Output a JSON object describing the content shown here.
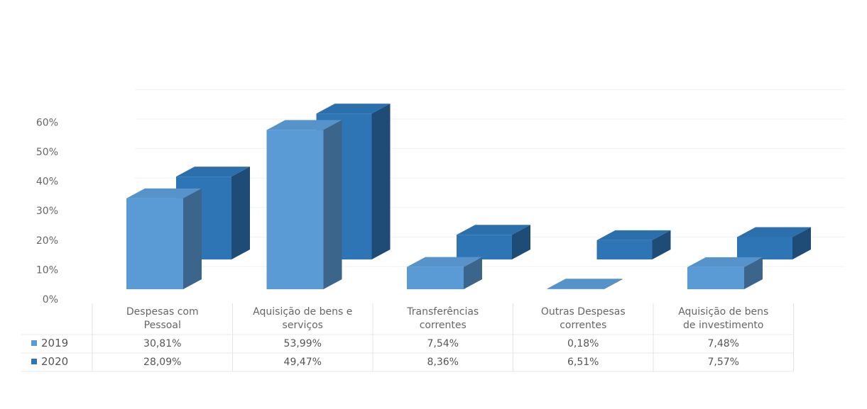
{
  "chart_data": {
    "type": "bar",
    "categories": [
      [
        "Despesas com",
        "Pessoal"
      ],
      [
        "Aquisição de bens e",
        "serviços"
      ],
      [
        "Transferências",
        "correntes"
      ],
      [
        "Outras Despesas",
        "correntes"
      ],
      [
        "Aquisição de bens",
        "de investimento"
      ]
    ],
    "series": [
      {
        "name": "2019",
        "values": [
          30.81,
          53.99,
          7.54,
          0.18,
          7.48
        ],
        "labels": [
          "30,81%",
          "53,99%",
          "7,54%",
          "0,18%",
          "7,48%"
        ],
        "color": "#5b9bd5"
      },
      {
        "name": "2020",
        "values": [
          28.09,
          49.47,
          8.36,
          6.51,
          7.57
        ],
        "labels": [
          "28,09%",
          "49,47%",
          "8,36%",
          "6,51%",
          "7,57%"
        ],
        "color": "#2e75b6"
      }
    ],
    "yticks": [
      "0%",
      "10%",
      "20%",
      "30%",
      "40%",
      "50%",
      "60%"
    ],
    "ylim": [
      0,
      60
    ],
    "grid": true,
    "style": "3d-column",
    "legend": "data-table"
  }
}
